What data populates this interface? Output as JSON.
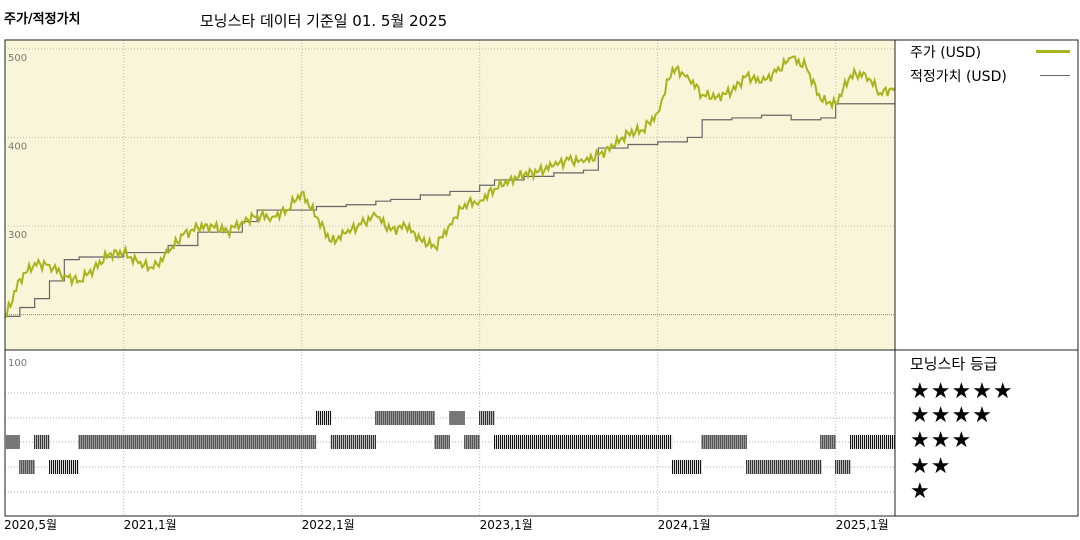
{
  "header": {
    "left_title": "주가/적정가치",
    "main_title": "모닝스타 데이터 기준일 01. 5월 2025"
  },
  "legend": {
    "price": "주가 (USD)",
    "fair_value": "적정가치 (USD)",
    "price_color": "#a8b31e",
    "fair_value_color": "#666666"
  },
  "rating_panel": {
    "title": "모닝스타 등급",
    "rows": [
      "★★★★★",
      "★★★★",
      "★★★",
      "★★",
      "★"
    ],
    "ytick": "100"
  },
  "chart_data": {
    "type": "line",
    "x_axis": {
      "start": "2020-05",
      "end": "2025-05",
      "tick_labels": [
        "2020,5월",
        "2021,1월",
        "2022,1월",
        "2023,1월",
        "2024,1월",
        "2025,1월"
      ],
      "tick_dates": [
        "2020-05",
        "2021-01",
        "2022-01",
        "2023-01",
        "2024-01",
        "2025-01"
      ]
    },
    "y_axis": {
      "ylim": [
        160,
        510
      ],
      "tick_values": [
        500,
        400,
        300
      ],
      "tick_labels": [
        "500",
        "400",
        "300"
      ],
      "grid": true
    },
    "series": [
      {
        "name": "주가 (USD)",
        "points": [
          [
            "2020-05",
            196
          ],
          [
            "2020-06",
            240
          ],
          [
            "2020-07",
            258
          ],
          [
            "2020-08",
            256
          ],
          [
            "2020-09",
            244
          ],
          [
            "2020-10",
            238
          ],
          [
            "2020-11",
            252
          ],
          [
            "2020-12",
            268
          ],
          [
            "2021-01",
            270
          ],
          [
            "2021-02",
            258
          ],
          [
            "2021-03",
            252
          ],
          [
            "2021-04",
            270
          ],
          [
            "2021-05",
            290
          ],
          [
            "2021-06",
            298
          ],
          [
            "2021-07",
            300
          ],
          [
            "2021-08",
            294
          ],
          [
            "2021-09",
            305
          ],
          [
            "2021-10",
            312
          ],
          [
            "2021-11",
            310
          ],
          [
            "2021-12",
            318
          ],
          [
            "2022-01",
            338
          ],
          [
            "2022-02",
            310
          ],
          [
            "2022-03",
            282
          ],
          [
            "2022-04",
            292
          ],
          [
            "2022-05",
            302
          ],
          [
            "2022-06",
            312
          ],
          [
            "2022-07",
            295
          ],
          [
            "2022-08",
            300
          ],
          [
            "2022-09",
            285
          ],
          [
            "2022-10",
            276
          ],
          [
            "2022-11",
            302
          ],
          [
            "2022-12",
            325
          ],
          [
            "2023-01",
            328
          ],
          [
            "2023-02",
            342
          ],
          [
            "2023-03",
            352
          ],
          [
            "2023-04",
            358
          ],
          [
            "2023-05",
            362
          ],
          [
            "2023-06",
            368
          ],
          [
            "2023-07",
            375
          ],
          [
            "2023-08",
            372
          ],
          [
            "2023-09",
            380
          ],
          [
            "2023-10",
            390
          ],
          [
            "2023-11",
            405
          ],
          [
            "2023-12",
            408
          ],
          [
            "2024-01",
            428
          ],
          [
            "2024-02",
            478
          ],
          [
            "2024-03",
            470
          ],
          [
            "2024-04",
            448
          ],
          [
            "2024-05",
            446
          ],
          [
            "2024-06",
            452
          ],
          [
            "2024-07",
            470
          ],
          [
            "2024-08",
            462
          ],
          [
            "2024-09",
            474
          ],
          [
            "2024-10",
            490
          ],
          [
            "2024-11",
            480
          ],
          [
            "2024-12",
            442
          ],
          [
            "2025-01",
            438
          ],
          [
            "2025-02",
            470
          ],
          [
            "2025-03",
            472
          ],
          [
            "2025-04",
            450
          ],
          [
            "2025-05",
            456
          ]
        ]
      },
      {
        "name": "적정가치 (USD)",
        "points": [
          [
            "2020-05",
            198
          ],
          [
            "2020-06",
            208
          ],
          [
            "2020-07",
            218
          ],
          [
            "2020-08",
            238
          ],
          [
            "2020-09",
            262
          ],
          [
            "2020-10",
            265
          ],
          [
            "2021-01",
            270
          ],
          [
            "2021-04",
            278
          ],
          [
            "2021-06",
            293
          ],
          [
            "2021-09",
            305
          ],
          [
            "2021-10",
            318
          ],
          [
            "2022-01",
            318
          ],
          [
            "2022-02",
            322
          ],
          [
            "2022-04",
            324
          ],
          [
            "2022-06",
            328
          ],
          [
            "2022-07",
            330
          ],
          [
            "2022-09",
            335
          ],
          [
            "2022-11",
            339
          ],
          [
            "2023-01",
            346
          ],
          [
            "2023-02",
            352
          ],
          [
            "2023-04",
            356
          ],
          [
            "2023-06",
            360
          ],
          [
            "2023-08",
            363
          ],
          [
            "2023-09",
            388
          ],
          [
            "2023-11",
            392
          ],
          [
            "2024-01",
            395
          ],
          [
            "2024-03",
            400
          ],
          [
            "2024-04",
            420
          ],
          [
            "2024-06",
            422
          ],
          [
            "2024-08",
            425
          ],
          [
            "2024-10",
            420
          ],
          [
            "2024-12",
            422
          ],
          [
            "2025-01",
            438
          ],
          [
            "2025-05",
            438
          ]
        ]
      }
    ],
    "ratings": {
      "segments": [
        [
          "2020-05",
          "2020-06",
          3
        ],
        [
          "2020-06",
          "2020-07",
          2
        ],
        [
          "2020-07",
          "2020-08",
          3
        ],
        [
          "2020-08",
          "2020-10",
          2
        ],
        [
          "2020-10",
          "2022-02",
          3
        ],
        [
          "2022-02",
          "2022-03",
          4
        ],
        [
          "2022-03",
          "2022-06",
          3
        ],
        [
          "2022-06",
          "2022-10",
          4
        ],
        [
          "2022-10",
          "2022-11",
          3
        ],
        [
          "2022-11",
          "2022-12",
          4
        ],
        [
          "2022-12",
          "2023-01",
          3
        ],
        [
          "2023-01",
          "2023-02",
          4
        ],
        [
          "2023-02",
          "2024-02",
          3
        ],
        [
          "2024-02",
          "2024-04",
          2
        ],
        [
          "2024-04",
          "2024-07",
          3
        ],
        [
          "2024-07",
          "2024-12",
          2
        ],
        [
          "2024-12",
          "2025-01",
          3
        ],
        [
          "2025-01",
          "2025-02",
          2
        ],
        [
          "2025-02",
          "2025-05",
          3
        ]
      ]
    }
  }
}
